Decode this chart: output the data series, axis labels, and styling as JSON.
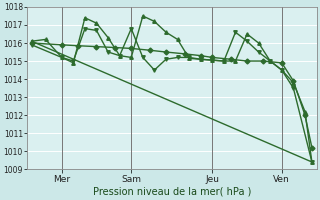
{
  "xlabel": "Pression niveau de la mer( hPa )",
  "bg_color": "#cce8e8",
  "plot_bg_color": "#daf0f0",
  "grid_color": "#ffffff",
  "line_color": "#2d6b2d",
  "ylim": [
    1009,
    1018
  ],
  "yticks": [
    1009,
    1010,
    1011,
    1012,
    1013,
    1014,
    1015,
    1016,
    1017,
    1018
  ],
  "xlim": [
    0,
    12.5
  ],
  "vlines_x": [
    1.5,
    4.5,
    8.0,
    11.0
  ],
  "xtick_labels": [
    "Mer",
    "Sam",
    "Jeu",
    "Ven"
  ],
  "xtick_positions": [
    1.5,
    4.5,
    8.0,
    11.0
  ],
  "series": [
    {
      "x": [
        0.2,
        12.3
      ],
      "y": [
        1016.1,
        1009.4
      ],
      "marker": null,
      "lw": 1.0
    },
    {
      "x": [
        0.2,
        1.5,
        2.2,
        3.0,
        3.8,
        4.5,
        5.3,
        6.0,
        6.8,
        7.5,
        8.0,
        8.8,
        9.5,
        10.2,
        11.0,
        11.5,
        12.0,
        12.3
      ],
      "y": [
        1016.0,
        1015.9,
        1015.85,
        1015.8,
        1015.75,
        1015.7,
        1015.6,
        1015.5,
        1015.4,
        1015.3,
        1015.2,
        1015.1,
        1015.0,
        1015.0,
        1014.9,
        1013.9,
        1012.0,
        1010.2
      ],
      "marker": "D",
      "lw": 1.0
    },
    {
      "x": [
        0.2,
        0.8,
        1.5,
        2.0,
        2.5,
        3.0,
        3.5,
        4.0,
        4.5,
        5.0,
        5.5,
        6.0,
        6.5,
        7.0,
        7.5,
        8.0,
        8.5,
        9.0,
        9.5,
        10.0,
        10.5,
        11.0,
        11.5,
        12.0,
        12.3
      ],
      "y": [
        1016.1,
        1016.2,
        1015.2,
        1014.9,
        1017.4,
        1017.1,
        1016.3,
        1015.3,
        1015.2,
        1017.5,
        1017.2,
        1016.6,
        1016.2,
        1015.15,
        1015.1,
        1015.05,
        1015.0,
        1015.0,
        1016.5,
        1016.0,
        1015.0,
        1014.5,
        1013.8,
        1012.2,
        1009.4
      ],
      "marker": "^",
      "lw": 1.0
    },
    {
      "x": [
        0.2,
        1.5,
        2.0,
        2.5,
        3.0,
        3.5,
        4.0,
        4.5,
        5.0,
        5.5,
        6.0,
        6.5,
        7.0,
        7.5,
        8.0,
        8.5,
        9.0,
        9.5,
        10.0,
        10.5,
        11.0,
        11.5,
        12.3
      ],
      "y": [
        1015.9,
        1015.2,
        1015.0,
        1016.8,
        1016.7,
        1015.5,
        1015.3,
        1016.8,
        1015.2,
        1014.5,
        1015.1,
        1015.2,
        1015.2,
        1015.1,
        1015.05,
        1015.0,
        1016.6,
        1016.1,
        1015.5,
        1015.0,
        1014.5,
        1013.5,
        1009.4
      ],
      "marker": "v",
      "lw": 1.0
    }
  ]
}
